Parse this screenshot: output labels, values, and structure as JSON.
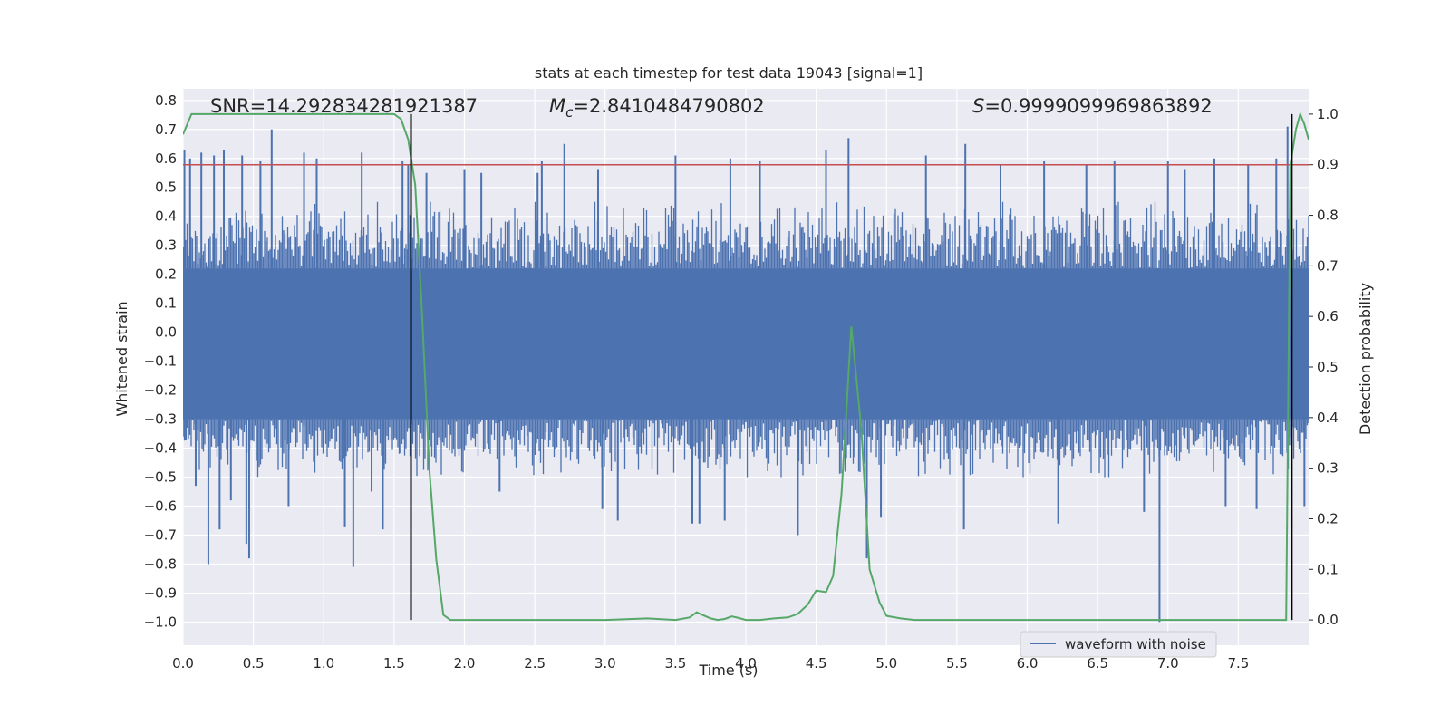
{
  "chart_data": {
    "type": "line",
    "title": "stats at each timestep for test data 19043 [signal=1]",
    "xlabel": "Time (s)",
    "ylabel": "Whitened strain",
    "y2label": "Detection probability",
    "xlim": [
      0.0,
      8.0
    ],
    "ylim": [
      -1.08,
      0.84
    ],
    "y2lim": [
      -0.05,
      1.05
    ],
    "xticks": [
      0.0,
      0.5,
      1.0,
      1.5,
      2.0,
      2.5,
      3.0,
      3.5,
      4.0,
      4.5,
      5.0,
      5.5,
      6.0,
      6.5,
      7.0,
      7.5
    ],
    "yticks": [
      0.8,
      0.7,
      0.6,
      0.5,
      0.4,
      0.3,
      0.2,
      0.1,
      0.0,
      -0.1,
      -0.2,
      -0.3,
      -0.4,
      -0.5,
      -0.6,
      -0.7,
      -0.8,
      -0.9,
      -1.0
    ],
    "y2ticks": [
      1.0,
      0.9,
      0.8,
      0.7,
      0.6,
      0.5,
      0.4,
      0.3,
      0.2,
      0.1,
      0.0
    ],
    "grid": true,
    "legend_position": "bottom-right",
    "annotations": {
      "snr": "SNR=14.292834281921387",
      "mc_symbol": "M",
      "mc_sub": "c",
      "mc_value": "=2.8410484790802",
      "s_symbol": "S",
      "s_value": "=0.9999099969863892"
    },
    "series": [
      {
        "name": "waveform with noise",
        "axis": "left",
        "color": "#4c72b0",
        "kind": "noise",
        "core_band": [
          -0.3,
          0.22
        ],
        "typical_extent": [
          -0.5,
          0.45
        ],
        "spikes": [
          [
            0.01,
            0.63
          ],
          [
            0.02,
            -0.37
          ],
          [
            0.05,
            0.6
          ],
          [
            0.09,
            -0.53
          ],
          [
            0.13,
            0.62
          ],
          [
            0.18,
            -0.8
          ],
          [
            0.22,
            0.61
          ],
          [
            0.26,
            -0.68
          ],
          [
            0.29,
            0.63
          ],
          [
            0.34,
            -0.58
          ],
          [
            0.42,
            0.61
          ],
          [
            0.45,
            -0.73
          ],
          [
            0.47,
            -0.78
          ],
          [
            0.55,
            0.59
          ],
          [
            0.63,
            0.7
          ],
          [
            0.75,
            -0.6
          ],
          [
            0.86,
            0.62
          ],
          [
            0.95,
            0.6
          ],
          [
            1.15,
            -0.67
          ],
          [
            1.21,
            -0.81
          ],
          [
            1.27,
            0.62
          ],
          [
            1.34,
            -0.55
          ],
          [
            1.42,
            -0.68
          ],
          [
            1.56,
            0.59
          ],
          [
            1.6,
            0.58
          ],
          [
            1.73,
            0.55
          ],
          [
            2.0,
            0.56
          ],
          [
            2.12,
            0.55
          ],
          [
            2.25,
            -0.55
          ],
          [
            2.52,
            0.55
          ],
          [
            2.55,
            0.59
          ],
          [
            2.71,
            0.65
          ],
          [
            2.95,
            0.56
          ],
          [
            2.98,
            -0.61
          ],
          [
            3.09,
            -0.65
          ],
          [
            3.5,
            0.61
          ],
          [
            3.62,
            -0.66
          ],
          [
            3.67,
            -0.66
          ],
          [
            3.85,
            -0.65
          ],
          [
            3.89,
            0.6
          ],
          [
            4.1,
            0.59
          ],
          [
            4.37,
            -0.7
          ],
          [
            4.57,
            0.63
          ],
          [
            4.73,
            0.67
          ],
          [
            4.86,
            -0.78
          ],
          [
            4.96,
            -0.64
          ],
          [
            5.28,
            0.61
          ],
          [
            5.55,
            -0.68
          ],
          [
            5.56,
            0.65
          ],
          [
            5.81,
            0.58
          ],
          [
            6.12,
            0.59
          ],
          [
            6.22,
            -0.66
          ],
          [
            6.42,
            0.58
          ],
          [
            6.62,
            0.59
          ],
          [
            6.83,
            -0.62
          ],
          [
            6.94,
            -1.0
          ],
          [
            7.0,
            0.59
          ],
          [
            7.12,
            0.56
          ],
          [
            7.33,
            0.6
          ],
          [
            7.41,
            -0.6
          ],
          [
            7.57,
            0.58
          ],
          [
            7.63,
            -0.61
          ],
          [
            7.77,
            0.6
          ],
          [
            7.85,
            0.71
          ],
          [
            7.97,
            -0.6
          ]
        ]
      },
      {
        "name": "",
        "axis": "right",
        "color": "#55a868",
        "x": [
          0.0,
          0.06,
          0.15,
          0.3,
          0.6,
          1.0,
          1.3,
          1.5,
          1.55,
          1.6,
          1.65,
          1.7,
          1.75,
          1.8,
          1.85,
          1.9,
          2.0,
          2.3,
          2.6,
          3.0,
          3.3,
          3.5,
          3.6,
          3.65,
          3.7,
          3.75,
          3.8,
          3.85,
          3.9,
          3.95,
          4.0,
          4.1,
          4.2,
          4.3,
          4.37,
          4.44,
          4.5,
          4.57,
          4.62,
          4.68,
          4.75,
          4.82,
          4.88,
          4.95,
          5.0,
          5.1,
          5.2,
          5.5,
          6.0,
          6.5,
          6.8,
          7.0,
          7.3,
          7.6,
          7.8,
          7.84,
          7.87,
          7.91,
          7.94,
          7.97,
          8.0
        ],
        "y": [
          0.96,
          1.0,
          1.0,
          1.0,
          1.0,
          1.0,
          1.0,
          1.0,
          0.99,
          0.95,
          0.86,
          0.6,
          0.3,
          0.12,
          0.01,
          0.0,
          0.0,
          0.0,
          0.0,
          0.0,
          0.003,
          0.0,
          0.005,
          0.015,
          0.009,
          0.003,
          0.0,
          0.002,
          0.007,
          0.004,
          0.0,
          0.0,
          0.003,
          0.005,
          0.012,
          0.03,
          0.058,
          0.055,
          0.087,
          0.25,
          0.58,
          0.38,
          0.1,
          0.035,
          0.008,
          0.003,
          0.0,
          0.0,
          0.0,
          0.0,
          0.0,
          0.0,
          0.0,
          0.0,
          0.0,
          0.0,
          0.9,
          0.97,
          1.0,
          0.98,
          0.95
        ]
      }
    ],
    "hlines": [
      {
        "axis": "right",
        "y": 0.9,
        "color": "#c44e52"
      }
    ],
    "vlines": [
      {
        "x": 1.62,
        "y2_range": [
          0.0,
          1.0
        ],
        "color": "#000000"
      },
      {
        "x": 7.88,
        "y2_range": [
          0.0,
          1.0
        ],
        "color": "#000000"
      }
    ]
  }
}
